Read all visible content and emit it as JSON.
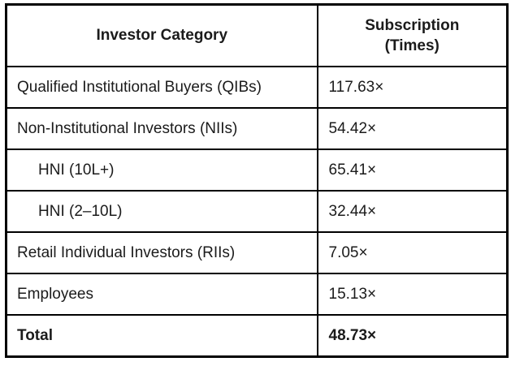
{
  "table": {
    "header": {
      "investor_category": "Investor Category",
      "subscription_full": "Subscription (Times)",
      "subscription_line1": "Subscription",
      "subscription_line2": "(Times)"
    },
    "rows": [
      {
        "category": "Qualified Institutional Buyers (QIBs)",
        "subscription": "117.63×",
        "indent": false,
        "bold": false
      },
      {
        "category": "Non-Institutional Investors (NIIs)",
        "subscription": "54.42×",
        "indent": false,
        "bold": false
      },
      {
        "category": "HNI (10L+)",
        "subscription": "65.41×",
        "indent": true,
        "bold": false
      },
      {
        "category": "HNI (2–10L)",
        "subscription": "32.44×",
        "indent": true,
        "bold": false
      },
      {
        "category": "Retail Individual Investors (RIIs)",
        "subscription": "7.05×",
        "indent": false,
        "bold": false
      },
      {
        "category": "Employees",
        "subscription": "15.13×",
        "indent": false,
        "bold": false
      },
      {
        "category": "Total",
        "subscription": "48.73×",
        "indent": false,
        "bold": true
      }
    ],
    "colors": {
      "border": "#000000",
      "text": "#1b1b1b",
      "background": "#ffffff"
    }
  },
  "chart_data": {
    "type": "table",
    "title": "",
    "columns": [
      "Investor Category",
      "Subscription (Times)"
    ],
    "rows": [
      [
        "Qualified Institutional Buyers (QIBs)",
        "117.63×"
      ],
      [
        "Non-Institutional Investors (NIIs)",
        "54.42×"
      ],
      [
        "HNI (10L+)",
        "65.41×"
      ],
      [
        "HNI (2–10L)",
        "32.44×"
      ],
      [
        "Retail Individual Investors (RIIs)",
        "7.05×"
      ],
      [
        "Employees",
        "15.13×"
      ],
      [
        "Total",
        "48.73×"
      ]
    ],
    "subscription_values_numeric": [
      117.63,
      54.42,
      65.41,
      32.44,
      7.05,
      15.13,
      48.73
    ]
  }
}
